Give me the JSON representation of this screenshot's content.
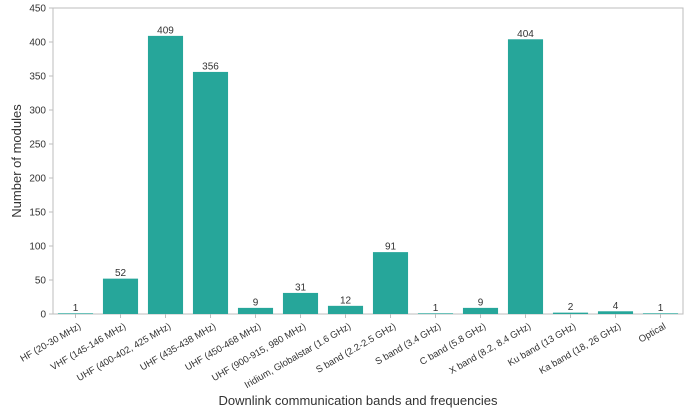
{
  "chart_data": {
    "type": "bar",
    "xlabel": "Downlink communication bands and frequencies",
    "ylabel": "Number of modules",
    "ylim": [
      0,
      450
    ],
    "yticks": [
      0,
      50,
      100,
      150,
      200,
      250,
      300,
      350,
      400,
      450
    ],
    "grid": false,
    "bar_color": "#26a69a",
    "categories": [
      "HF (20-30 MHz)",
      "VHF (145-146 MHz)",
      "UHF (400-402, 425 MHz)",
      "UHF (435-438 MHz)",
      "UHF (450-468 MHz)",
      "UHF (900-915, 980 MHz)",
      "Iridium, Globalstar (1.6 GHz)",
      "S band (2.2-2.5 GHz)",
      "S band (3.4 GHz)",
      "C band (5.8 GHz)",
      "X band (8.2, 8.4 GHz)",
      "Ku band (13 GHz)",
      "Ka band (18, 26 GHz)",
      "Optical"
    ],
    "values": [
      1,
      52,
      409,
      356,
      9,
      31,
      12,
      91,
      1,
      9,
      404,
      2,
      4,
      1
    ]
  }
}
